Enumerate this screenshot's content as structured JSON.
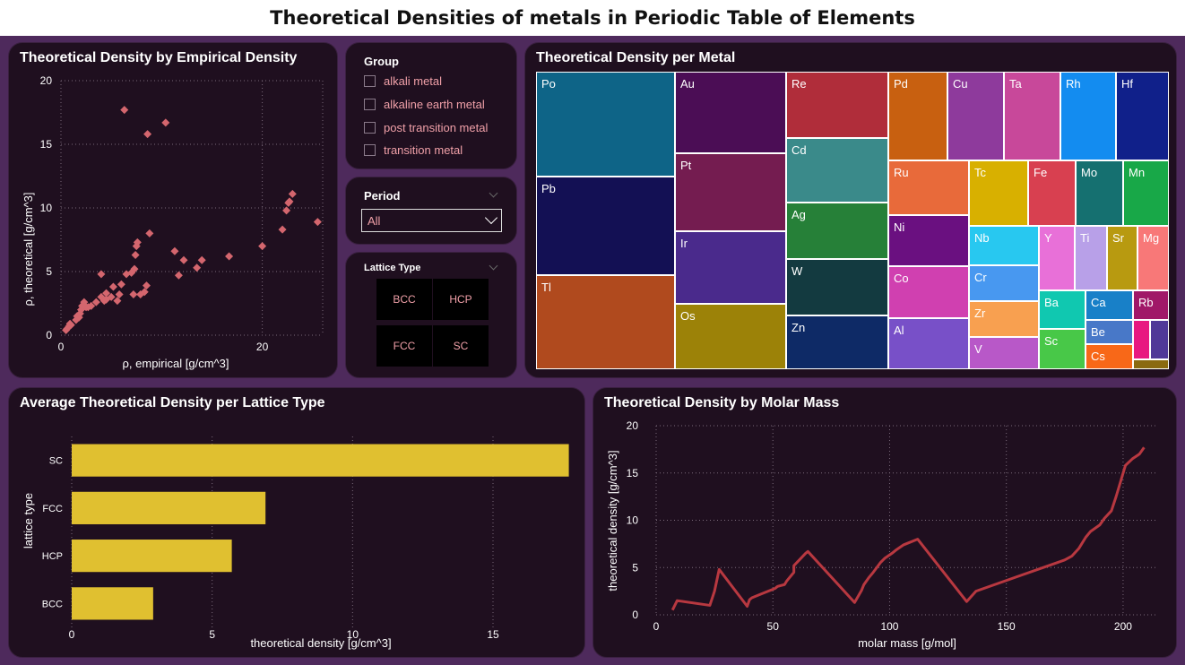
{
  "page_title": "Theoretical Densities of metals in Periodic Table of Elements",
  "scatter": {
    "title": "Theoretical Density by Empirical Density",
    "xlabel": "ρ, empirical [g/cm^3]",
    "ylabel": "ρ, theoretical [g/cm^3]",
    "yticks": [
      "0",
      "5",
      "10",
      "15",
      "20"
    ],
    "xticks": [
      "0",
      "20"
    ],
    "marker_color": "#d4666e"
  },
  "slicers": {
    "group": {
      "title": "Group",
      "options": [
        "alkali metal",
        "alkaline earth metal",
        "post transition metal",
        "transition metal"
      ]
    },
    "period": {
      "title": "Period",
      "value": "All"
    },
    "lattice": {
      "title": "Lattice Type",
      "tiles": [
        "BCC",
        "HCP",
        "FCC",
        "SC"
      ]
    }
  },
  "treemap": {
    "title": "Theoretical Density per Metal",
    "cells": [
      {
        "label": "Po",
        "color": "#0e6487"
      },
      {
        "label": "Pb",
        "color": "#131054"
      },
      {
        "label": "Tl",
        "color": "#b04a1e"
      },
      {
        "label": "Au",
        "color": "#4b0d55"
      },
      {
        "label": "Pt",
        "color": "#741c50"
      },
      {
        "label": "Ir",
        "color": "#4a2a8c"
      },
      {
        "label": "Os",
        "color": "#9c8208"
      },
      {
        "label": "Re",
        "color": "#b02d3a"
      },
      {
        "label": "Cd",
        "color": "#3a8a8a"
      },
      {
        "label": "Ag",
        "color": "#268038"
      },
      {
        "label": "W",
        "color": "#133a40"
      },
      {
        "label": "Zn",
        "color": "#0e2a66"
      },
      {
        "label": "Pd",
        "color": "#c86010"
      },
      {
        "label": "Cu",
        "color": "#8e3a9c"
      },
      {
        "label": "Ta",
        "color": "#c8489a"
      },
      {
        "label": "Rh",
        "color": "#138cf0"
      },
      {
        "label": "Hf",
        "color": "#10208a"
      },
      {
        "label": "Ru",
        "color": "#e86a3a"
      },
      {
        "label": "Tc",
        "color": "#d8b000"
      },
      {
        "label": "Fe",
        "color": "#d84050"
      },
      {
        "label": "Mo",
        "color": "#157070"
      },
      {
        "label": "Mn",
        "color": "#18a848"
      },
      {
        "label": "Ni",
        "color": "#6a1080"
      },
      {
        "label": "Nb",
        "color": "#28c8f0"
      },
      {
        "label": "Y",
        "color": "#e870d8"
      },
      {
        "label": "Ti",
        "color": "#b8a0e8"
      },
      {
        "label": "Sr",
        "color": "#b89a10"
      },
      {
        "label": "Mg",
        "color": "#f87878"
      },
      {
        "label": "Co",
        "color": "#d040b0"
      },
      {
        "label": "Cr",
        "color": "#4898f0"
      },
      {
        "label": "Zr",
        "color": "#f8a050"
      },
      {
        "label": "Ba",
        "color": "#10c8b0"
      },
      {
        "label": "Ca",
        "color": "#1880c8"
      },
      {
        "label": "Rb",
        "color": "#a01868"
      },
      {
        "label": "Al",
        "color": "#7850c8"
      },
      {
        "label": "V",
        "color": "#b858c8"
      },
      {
        "label": "Sc",
        "color": "#48c848"
      },
      {
        "label": "Be",
        "color": "#4878c8"
      },
      {
        "label": "Cs",
        "color": "#f86818"
      },
      {
        "label": "",
        "color": "#e81880"
      },
      {
        "label": "",
        "color": "#503898"
      },
      {
        "label": "",
        "color": "#8a6a10"
      }
    ]
  },
  "bar": {
    "title": "Average Theoretical Density per Lattice Type",
    "xlabel": "theoretical density [g/cm^3]",
    "ylabel": "lattice type",
    "xticks": [
      "0",
      "5",
      "10",
      "15"
    ],
    "color": "#e0c030"
  },
  "line": {
    "title": "Theoretical Density by Molar Mass",
    "xlabel": "molar mass [g/mol]",
    "ylabel": "theoretical density [g/cm^3]",
    "xticks": [
      "0",
      "50",
      "100",
      "150",
      "200"
    ],
    "yticks": [
      "0",
      "5",
      "10",
      "15",
      "20"
    ],
    "color": "#b83840"
  },
  "chart_data": [
    {
      "type": "scatter",
      "title": "Theoretical Density by Empirical Density",
      "xlabel": "ρ, empirical [g/cm^3]",
      "ylabel": "ρ, theoretical [g/cm^3]",
      "xlim": [
        0,
        26
      ],
      "ylim": [
        0,
        20
      ],
      "points": [
        [
          0.5,
          0.4
        ],
        [
          0.6,
          0.5
        ],
        [
          0.8,
          0.7
        ],
        [
          0.9,
          0.9
        ],
        [
          1.0,
          0.8
        ],
        [
          1.5,
          1.2
        ],
        [
          1.6,
          1.5
        ],
        [
          1.8,
          1.4
        ],
        [
          1.9,
          1.7
        ],
        [
          2.0,
          2.0
        ],
        [
          2.1,
          2.3
        ],
        [
          2.3,
          2.6
        ],
        [
          2.5,
          2.2
        ],
        [
          2.7,
          2.2
        ],
        [
          3.0,
          2.3
        ],
        [
          3.5,
          2.6
        ],
        [
          4.0,
          3.0
        ],
        [
          4.3,
          2.7
        ],
        [
          4.5,
          3.3
        ],
        [
          4.5,
          2.8
        ],
        [
          5.0,
          3.0
        ],
        [
          5.2,
          3.8
        ],
        [
          5.6,
          2.7
        ],
        [
          5.8,
          3.2
        ],
        [
          6.0,
          4.0
        ],
        [
          4.0,
          4.8
        ],
        [
          6.5,
          4.8
        ],
        [
          7.0,
          4.9
        ],
        [
          7.3,
          5.2
        ],
        [
          7.4,
          6.3
        ],
        [
          7.5,
          7.0
        ],
        [
          7.6,
          7.3
        ],
        [
          7.2,
          3.2
        ],
        [
          7.9,
          3.2
        ],
        [
          8.3,
          3.4
        ],
        [
          8.5,
          3.9
        ],
        [
          8.8,
          8.0
        ],
        [
          8.6,
          15.8
        ],
        [
          6.3,
          17.7
        ],
        [
          10.4,
          16.7
        ],
        [
          11.3,
          6.6
        ],
        [
          11.7,
          4.7
        ],
        [
          12.2,
          5.9
        ],
        [
          13.5,
          5.3
        ],
        [
          14.0,
          5.9
        ],
        [
          16.7,
          6.2
        ],
        [
          20.0,
          7.0
        ],
        [
          22.0,
          8.3
        ],
        [
          22.4,
          9.8
        ],
        [
          22.6,
          10.4
        ],
        [
          22.7,
          10.5
        ],
        [
          23.0,
          11.1
        ],
        [
          25.5,
          8.9
        ]
      ]
    },
    {
      "type": "treemap",
      "title": "Theoretical Density per Metal",
      "labels": [
        "Po",
        "Pb",
        "Tl",
        "Au",
        "Pt",
        "Ir",
        "Os",
        "Re",
        "Cd",
        "Ag",
        "W",
        "Zn",
        "Pd",
        "Cu",
        "Ta",
        "Rh",
        "Hf",
        "Ru",
        "Tc",
        "Fe",
        "Mo",
        "Mn",
        "Ni",
        "Nb",
        "Y",
        "Ti",
        "Sr",
        "Mg",
        "Co",
        "Cr",
        "Zr",
        "Ba",
        "Ca",
        "Rb",
        "Al",
        "V",
        "Sc",
        "Be",
        "Cs"
      ]
    },
    {
      "type": "bar",
      "orientation": "horizontal",
      "title": "Average Theoretical Density per Lattice Type",
      "xlabel": "theoretical density [g/cm^3]",
      "ylabel": "lattice type",
      "categories": [
        "SC",
        "FCC",
        "HCP",
        "BCC"
      ],
      "values": [
        17.7,
        6.9,
        5.7,
        2.9
      ],
      "xlim": [
        0,
        18
      ]
    },
    {
      "type": "line",
      "title": "Theoretical Density by Molar Mass",
      "xlabel": "molar mass [g/mol]",
      "ylabel": "theoretical density [g/cm^3]",
      "xlim": [
        0,
        215
      ],
      "ylim": [
        0,
        20
      ],
      "x": [
        7,
        9,
        23,
        25,
        27,
        39,
        40,
        41,
        45,
        48,
        51,
        52,
        55,
        56,
        59,
        59,
        64,
        65,
        85,
        88,
        89,
        91,
        93,
        96,
        98,
        101,
        103,
        106,
        108,
        112,
        133,
        137,
        175,
        178,
        181,
        184,
        186,
        190,
        192,
        195,
        197,
        201,
        204,
        207,
        209
      ],
      "y": [
        0.5,
        1.5,
        1.0,
        2.5,
        4.8,
        0.9,
        1.6,
        1.8,
        2.2,
        2.5,
        2.8,
        3.0,
        3.2,
        3.6,
        4.5,
        5.2,
        6.5,
        6.7,
        1.3,
        2.6,
        3.2,
        3.9,
        4.5,
        5.5,
        6.0,
        6.5,
        6.9,
        7.4,
        7.6,
        8.0,
        1.4,
        2.5,
        5.8,
        6.2,
        7.0,
        8.2,
        8.8,
        9.5,
        10.2,
        11.0,
        12.5,
        15.8,
        16.5,
        17.0,
        17.7
      ]
    }
  ]
}
